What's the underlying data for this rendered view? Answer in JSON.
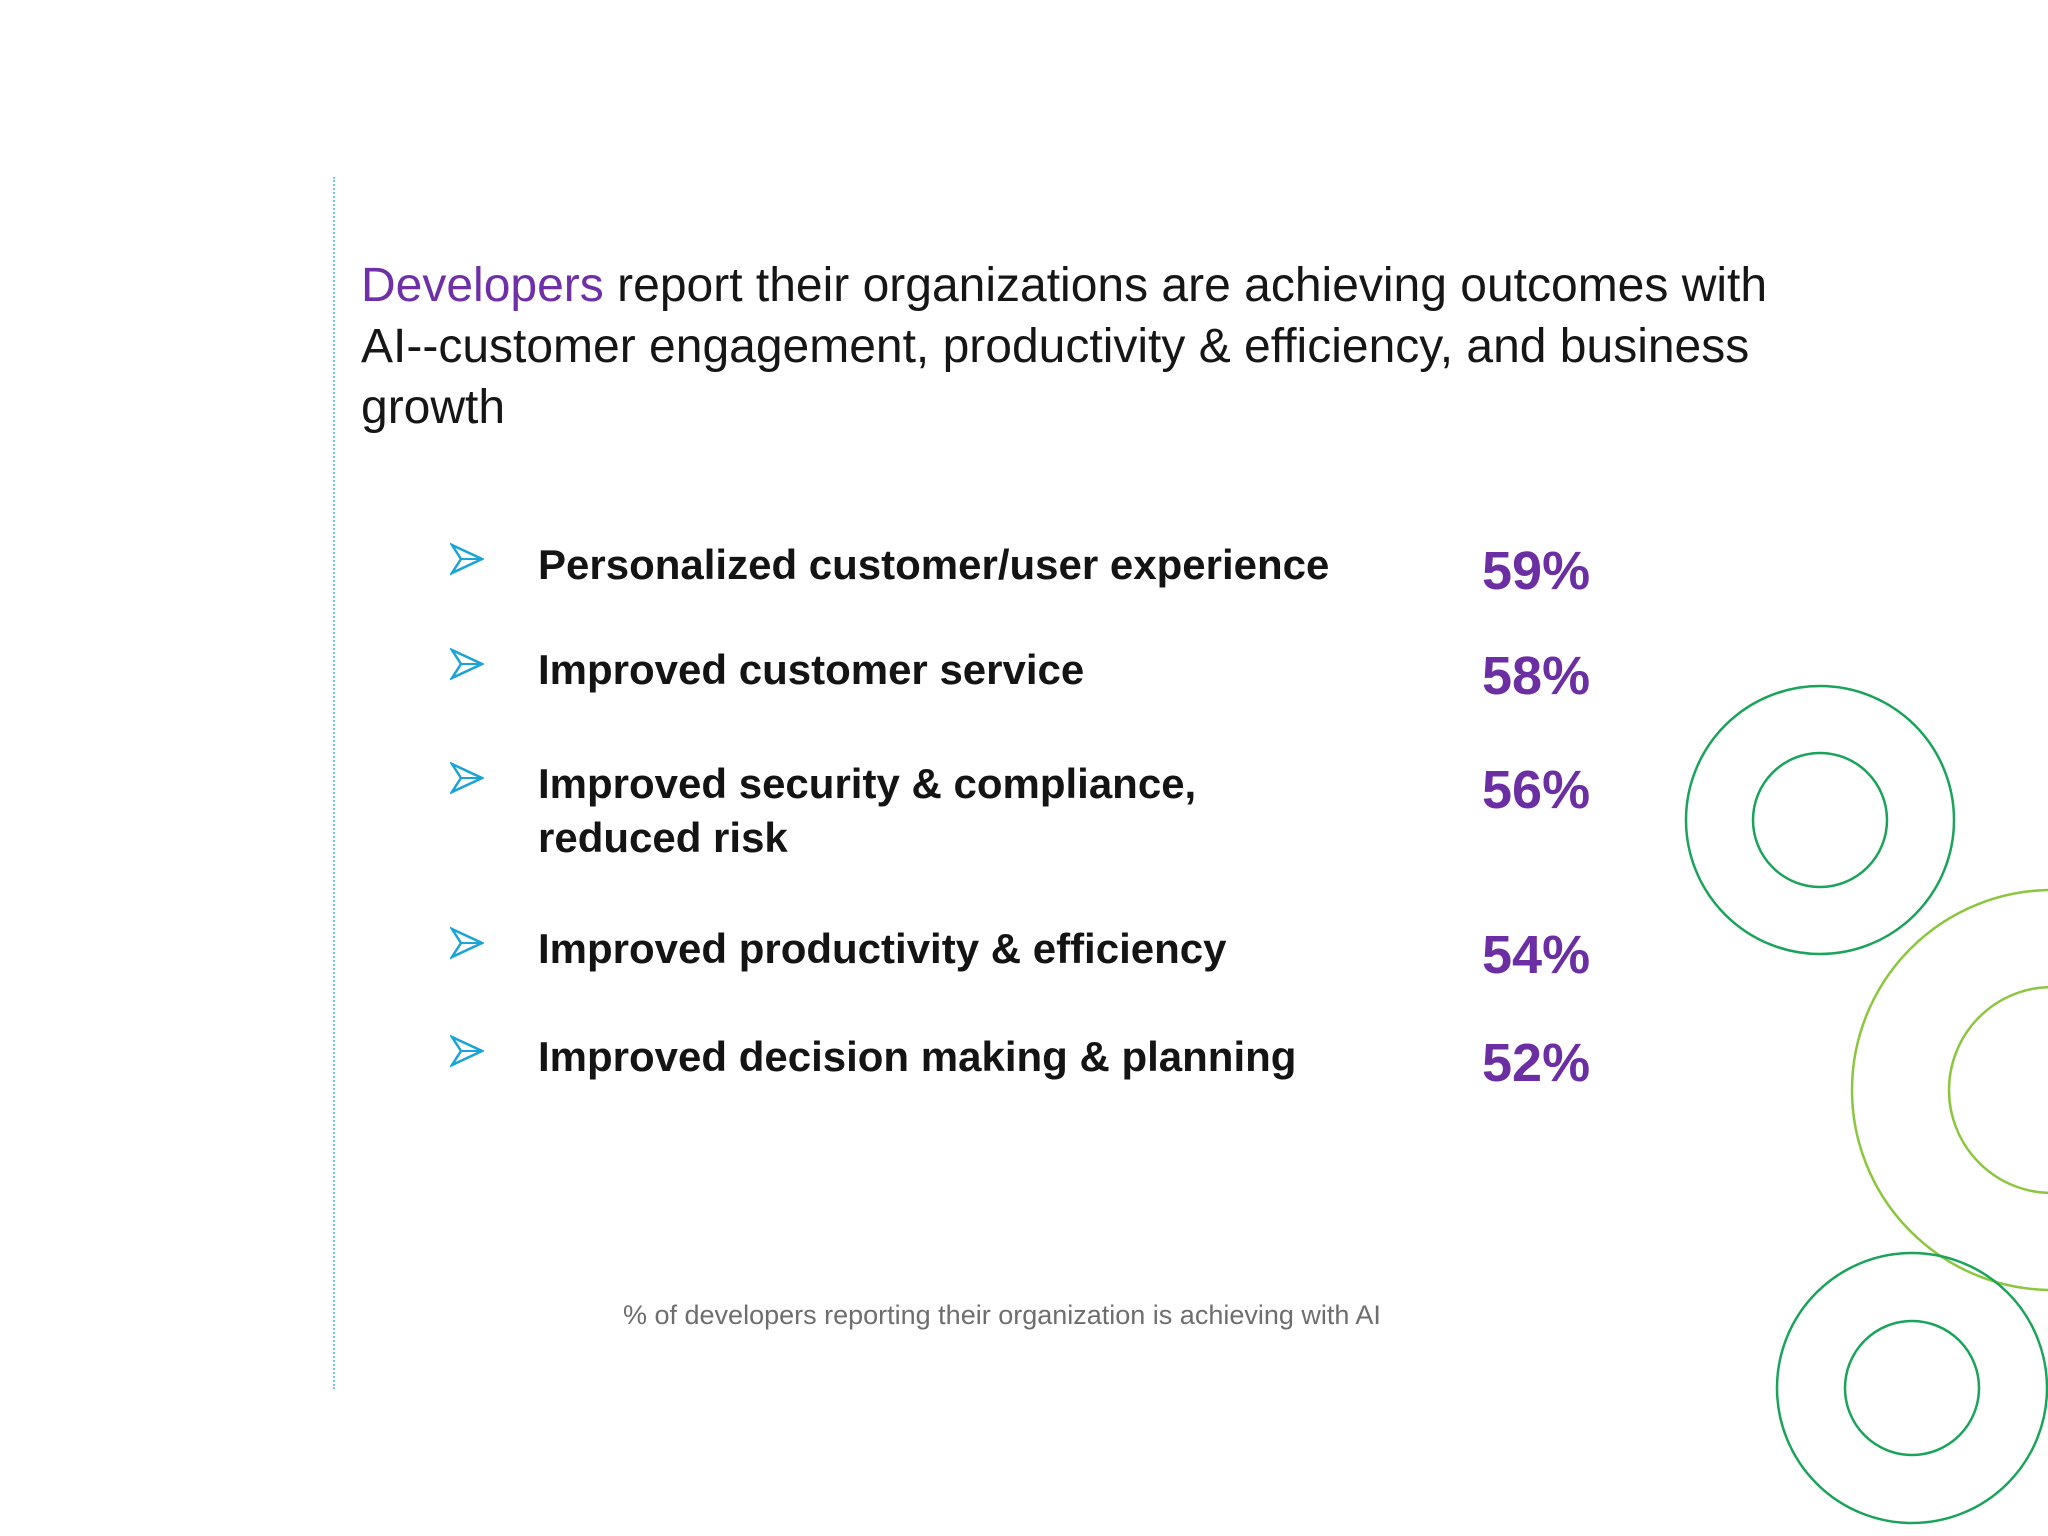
{
  "headline": {
    "accent": "Developers",
    "rest": " report their organizations are achieving outcomes with AI--customer engagement, productivity & efficiency, and business growth"
  },
  "bullet_icon": "arrowhead-bullet-icon",
  "outcomes": [
    {
      "label": "Personalized customer/user experience",
      "value": "59%",
      "percent": 59
    },
    {
      "label": "Improved customer service",
      "value": "58%",
      "percent": 58
    },
    {
      "label": "Improved security & compliance, reduced risk",
      "value": "56%",
      "percent": 56
    },
    {
      "label": "Improved productivity & efficiency",
      "value": "54%",
      "percent": 54
    },
    {
      "label": "Improved decision making & planning",
      "value": "52%",
      "percent": 52
    }
  ],
  "footnote": "% of developers reporting their organization is achieving with AI",
  "colors": {
    "accent": "#6f2fa8",
    "bullet": "#1aa3d6",
    "ring_dark_green": "#1aa35a",
    "ring_light_green": "#8cc63f"
  }
}
